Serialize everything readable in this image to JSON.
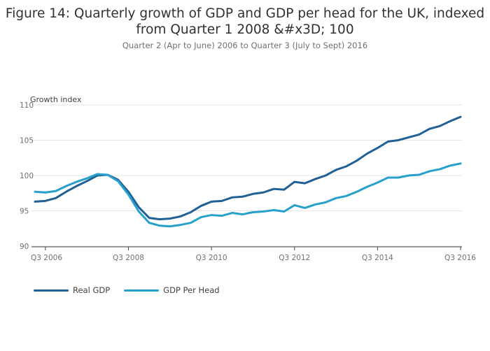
{
  "chart_data": {
    "type": "line",
    "title": "Figure 14: Quarterly growth of GDP and GDP per head for the UK, indexed from Quarter 1 2008 &#x3D; 100",
    "subtitle": "Quarter 2 (Apr to June) 2006 to Quarter 3 (July to Sept) 2016",
    "ylabel": "Growth index",
    "ylim": [
      90,
      110
    ],
    "yticks": [
      90,
      95,
      100,
      105,
      110
    ],
    "x": [
      "Q2 2006",
      "Q3 2006",
      "Q4 2006",
      "Q1 2007",
      "Q2 2007",
      "Q3 2007",
      "Q4 2007",
      "Q1 2008",
      "Q2 2008",
      "Q3 2008",
      "Q4 2008",
      "Q1 2009",
      "Q2 2009",
      "Q3 2009",
      "Q4 2009",
      "Q1 2010",
      "Q2 2010",
      "Q3 2010",
      "Q4 2010",
      "Q1 2011",
      "Q2 2011",
      "Q3 2011",
      "Q4 2011",
      "Q1 2012",
      "Q2 2012",
      "Q3 2012",
      "Q4 2012",
      "Q1 2013",
      "Q2 2013",
      "Q3 2013",
      "Q4 2013",
      "Q1 2014",
      "Q2 2014",
      "Q3 2014",
      "Q4 2014",
      "Q1 2015",
      "Q2 2015",
      "Q3 2015",
      "Q4 2015",
      "Q1 2016",
      "Q2 2016",
      "Q3 2016"
    ],
    "xticks": [
      "Q3 2006",
      "Q3 2008",
      "Q3 2010",
      "Q3 2012",
      "Q3 2014",
      "Q3 2016"
    ],
    "grid": true,
    "legend": "bottom-left",
    "series": [
      {
        "name": "Real GDP",
        "color": "#206095",
        "values": [
          96.3,
          96.4,
          96.8,
          97.7,
          98.5,
          99.2,
          100.0,
          100.1,
          99.4,
          97.7,
          95.5,
          94.0,
          93.8,
          93.9,
          94.2,
          94.8,
          95.7,
          96.3,
          96.4,
          96.9,
          97.0,
          97.4,
          97.6,
          98.1,
          98.0,
          99.1,
          98.9,
          99.5,
          100.0,
          100.8,
          101.3,
          102.1,
          103.1,
          103.9,
          104.8,
          105.0,
          105.4,
          105.8,
          106.6,
          107.0,
          107.7,
          108.3
        ]
      },
      {
        "name": "GDP Per Head",
        "color": "#27a0cc",
        "values": [
          97.7,
          97.6,
          97.8,
          98.5,
          99.1,
          99.6,
          100.2,
          100.1,
          99.2,
          97.3,
          94.9,
          93.3,
          92.9,
          92.8,
          93.0,
          93.3,
          94.1,
          94.4,
          94.3,
          94.7,
          94.5,
          94.8,
          94.9,
          95.1,
          94.9,
          95.8,
          95.4,
          95.9,
          96.2,
          96.8,
          97.1,
          97.7,
          98.4,
          99.0,
          99.7,
          99.7,
          100.0,
          100.1,
          100.6,
          100.9,
          101.4,
          101.7
        ]
      }
    ]
  }
}
